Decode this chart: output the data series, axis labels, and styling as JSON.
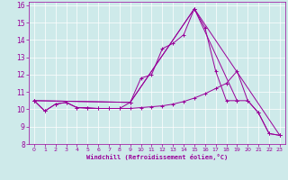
{
  "xlabel": "Windchill (Refroidissement éolien,°C)",
  "xlim": [
    -0.5,
    23.5
  ],
  "ylim": [
    8,
    16.2
  ],
  "yticks": [
    8,
    9,
    10,
    11,
    12,
    13,
    14,
    15,
    16
  ],
  "xticks": [
    0,
    1,
    2,
    3,
    4,
    5,
    6,
    7,
    8,
    9,
    10,
    11,
    12,
    13,
    14,
    15,
    16,
    17,
    18,
    19,
    20,
    21,
    22,
    23
  ],
  "color": "#990099",
  "bg_color": "#ceeaea",
  "line1_x": [
    0,
    1,
    2,
    3,
    4,
    5,
    6,
    7,
    8,
    9,
    10,
    11,
    12,
    13,
    14,
    15,
    16,
    17,
    18,
    19,
    20,
    21,
    22,
    23
  ],
  "line1_y": [
    10.5,
    9.9,
    10.3,
    10.4,
    10.1,
    10.1,
    10.05,
    10.05,
    10.05,
    10.4,
    11.8,
    12.0,
    13.5,
    13.8,
    14.3,
    15.8,
    14.7,
    12.2,
    10.5,
    10.5,
    10.5,
    9.8,
    8.6,
    8.5
  ],
  "line2_x": [
    0,
    9,
    15,
    19
  ],
  "line2_y": [
    10.5,
    10.4,
    15.8,
    10.5
  ],
  "line3_x": [
    0,
    9,
    15,
    23
  ],
  "line3_y": [
    10.5,
    10.4,
    15.8,
    8.5
  ],
  "line4_x": [
    0,
    1,
    2,
    3,
    4,
    5,
    6,
    7,
    8,
    9,
    10,
    11,
    12,
    13,
    14,
    15,
    16,
    17,
    18,
    19,
    20,
    21,
    22,
    23
  ],
  "line4_y": [
    10.5,
    9.9,
    10.3,
    10.4,
    10.1,
    10.05,
    10.05,
    10.05,
    10.05,
    10.05,
    10.1,
    10.15,
    10.2,
    10.3,
    10.45,
    10.65,
    10.9,
    11.2,
    11.5,
    12.2,
    10.5,
    9.8,
    8.6,
    8.5
  ]
}
